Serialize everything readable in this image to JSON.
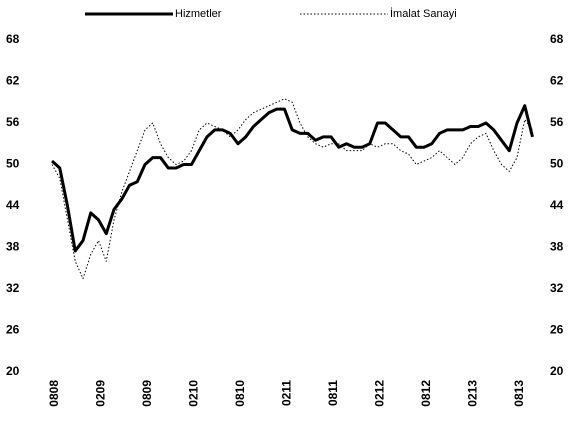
{
  "chart_data": {
    "type": "line",
    "categories": [
      "0808",
      null,
      null,
      null,
      null,
      null,
      "0209",
      null,
      null,
      null,
      null,
      null,
      "0809",
      null,
      null,
      null,
      null,
      null,
      "0210",
      null,
      null,
      null,
      null,
      null,
      "0810",
      null,
      null,
      null,
      null,
      null,
      "0211",
      null,
      null,
      null,
      null,
      null,
      "0811",
      null,
      null,
      null,
      null,
      null,
      "0212",
      null,
      null,
      null,
      null,
      null,
      "0812",
      null,
      null,
      null,
      null,
      null,
      "0213",
      null,
      null,
      null,
      null,
      null,
      "0813",
      null,
      null
    ],
    "series": [
      {
        "name": "Hizmetler",
        "color": "#000000",
        "style": "solid",
        "values": [
          50.5,
          49.5,
          44,
          37.5,
          39,
          43,
          42,
          40,
          43.5,
          45,
          47,
          47.5,
          50,
          51,
          51,
          49.5,
          49.5,
          50,
          50,
          52,
          54,
          55,
          55,
          54.5,
          53,
          54,
          55.5,
          56.5,
          57.5,
          58,
          58,
          55,
          54.5,
          54.5,
          53.5,
          54,
          54,
          52.5,
          53,
          52.5,
          52.5,
          53,
          56,
          56,
          55,
          54,
          54,
          52.5,
          52.5,
          53,
          54.5,
          55,
          55,
          55,
          55.5,
          55.5,
          56,
          55,
          53.5,
          52,
          56,
          58.5,
          54
        ]
      },
      {
        "name": "İmalat Sanayi",
        "color": "#000000",
        "style": "dotted",
        "values": [
          50,
          48,
          42,
          36,
          33.5,
          37,
          39,
          36,
          42,
          46,
          49,
          52,
          55,
          56,
          53,
          51,
          50,
          50.5,
          52,
          55,
          56,
          55.5,
          55,
          54,
          55,
          56.5,
          57.5,
          58,
          58.5,
          59,
          59.5,
          59,
          56,
          54,
          53,
          52.5,
          53,
          53,
          52,
          52,
          52,
          53,
          52.5,
          53,
          53,
          52,
          51.5,
          50,
          50.5,
          51,
          52,
          51,
          50,
          51,
          53,
          54,
          54.5,
          52,
          50,
          49,
          51,
          56.5,
          55
        ]
      }
    ],
    "ylim": [
      20,
      68
    ],
    "yticks": [
      20,
      26,
      32,
      38,
      44,
      50,
      56,
      62,
      68
    ],
    "y2lim": [
      20,
      68
    ],
    "y2ticks": [
      20,
      26,
      32,
      38,
      44,
      50,
      56,
      62,
      68
    ],
    "grid": false,
    "legend": "top"
  }
}
